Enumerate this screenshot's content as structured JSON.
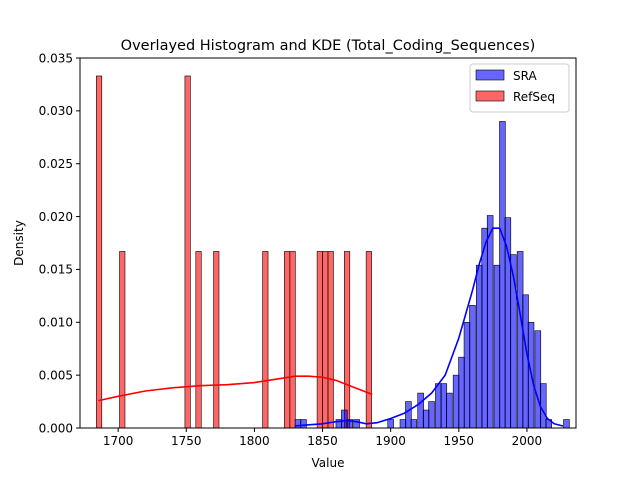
{
  "chart_data": {
    "type": "bar",
    "title": "Overlayed Histogram and KDE (Total_Coding_Sequences)",
    "xlabel": "Value",
    "ylabel": "Density",
    "xlim": [
      1672,
      2036
    ],
    "ylim": [
      0,
      0.035
    ],
    "xticks": [
      1700,
      1750,
      1800,
      1850,
      1900,
      1950,
      2000
    ],
    "yticks": [
      0.0,
      0.005,
      0.01,
      0.015,
      0.02,
      0.025,
      0.03,
      0.035
    ],
    "xtick_labels": [
      "1700",
      "1750",
      "1800",
      "1850",
      "1900",
      "1950",
      "2000"
    ],
    "ytick_labels": [
      "0.000",
      "0.005",
      "0.010",
      "0.015",
      "0.020",
      "0.025",
      "0.030",
      "0.035"
    ],
    "legend_position": "top-right",
    "grid": false,
    "series": [
      {
        "name": "RefSeq",
        "color": "#ff0000",
        "fill_opacity": 0.6,
        "bin_width": 4.0,
        "bins": [
          {
            "x": 1686,
            "density": 0.0333
          },
          {
            "x": 1703,
            "density": 0.0167
          },
          {
            "x": 1751,
            "density": 0.0333
          },
          {
            "x": 1759,
            "density": 0.0167
          },
          {
            "x": 1772,
            "density": 0.0167
          },
          {
            "x": 1808,
            "density": 0.0167
          },
          {
            "x": 1824,
            "density": 0.0167
          },
          {
            "x": 1828,
            "density": 0.0167
          },
          {
            "x": 1848,
            "density": 0.0167
          },
          {
            "x": 1852,
            "density": 0.0167
          },
          {
            "x": 1856,
            "density": 0.0167
          },
          {
            "x": 1868,
            "density": 0.0167
          },
          {
            "x": 1884,
            "density": 0.0167
          }
        ],
        "kde": {
          "x": [
            1686,
            1700,
            1720,
            1740,
            1760,
            1780,
            1800,
            1810,
            1820,
            1830,
            1840,
            1850,
            1860,
            1870,
            1880,
            1886
          ],
          "y": [
            0.0026,
            0.003,
            0.0035,
            0.0038,
            0.004,
            0.0041,
            0.0043,
            0.0045,
            0.0047,
            0.0049,
            0.0049,
            0.0048,
            0.0045,
            0.004,
            0.0035,
            0.0032
          ]
        }
      },
      {
        "name": "SRA",
        "color": "#0000ff",
        "fill_opacity": 0.6,
        "bin_width": 4.3,
        "bins": [
          {
            "x": 1832,
            "density": 0.0008
          },
          {
            "x": 1836,
            "density": 0.0008
          },
          {
            "x": 1862,
            "density": 0.0008
          },
          {
            "x": 1866,
            "density": 0.0017
          },
          {
            "x": 1870,
            "density": 0.0008
          },
          {
            "x": 1875,
            "density": 0.0008
          },
          {
            "x": 1900,
            "density": 0.0008
          },
          {
            "x": 1909,
            "density": 0.0008
          },
          {
            "x": 1913,
            "density": 0.0025
          },
          {
            "x": 1917,
            "density": 0.0008
          },
          {
            "x": 1922,
            "density": 0.0033
          },
          {
            "x": 1926,
            "density": 0.0017
          },
          {
            "x": 1930,
            "density": 0.0025
          },
          {
            "x": 1935,
            "density": 0.0042
          },
          {
            "x": 1939,
            "density": 0.0042
          },
          {
            "x": 1943,
            "density": 0.0033
          },
          {
            "x": 1948,
            "density": 0.005
          },
          {
            "x": 1952,
            "density": 0.0067
          },
          {
            "x": 1956,
            "density": 0.01
          },
          {
            "x": 1960,
            "density": 0.0116
          },
          {
            "x": 1965,
            "density": 0.0154
          },
          {
            "x": 1969,
            "density": 0.0189
          },
          {
            "x": 1973,
            "density": 0.0201
          },
          {
            "x": 1978,
            "density": 0.0154
          },
          {
            "x": 1982,
            "density": 0.029
          },
          {
            "x": 1986,
            "density": 0.0199
          },
          {
            "x": 1990,
            "density": 0.0164
          },
          {
            "x": 1995,
            "density": 0.0167
          },
          {
            "x": 1999,
            "density": 0.0126
          },
          {
            "x": 2003,
            "density": 0.01
          },
          {
            "x": 2008,
            "density": 0.0092
          },
          {
            "x": 2012,
            "density": 0.0042
          },
          {
            "x": 2016,
            "density": 0.0008
          },
          {
            "x": 2029,
            "density": 0.0008
          }
        ],
        "kde": {
          "x": [
            1830,
            1840,
            1850,
            1860,
            1868,
            1875,
            1882,
            1890,
            1900,
            1910,
            1920,
            1930,
            1940,
            1950,
            1960,
            1965,
            1970,
            1975,
            1980,
            1985,
            1990,
            1995,
            2000,
            2005,
            2010,
            2015,
            2020,
            2026
          ],
          "y": [
            0.0002,
            0.0003,
            0.0004,
            0.0006,
            0.0007,
            0.0006,
            0.0004,
            0.0005,
            0.0009,
            0.0014,
            0.0022,
            0.0033,
            0.005,
            0.0085,
            0.013,
            0.0155,
            0.0176,
            0.0189,
            0.0189,
            0.0172,
            0.0144,
            0.0108,
            0.007,
            0.004,
            0.002,
            0.0009,
            0.0004,
            0.0002
          ]
        }
      }
    ]
  }
}
